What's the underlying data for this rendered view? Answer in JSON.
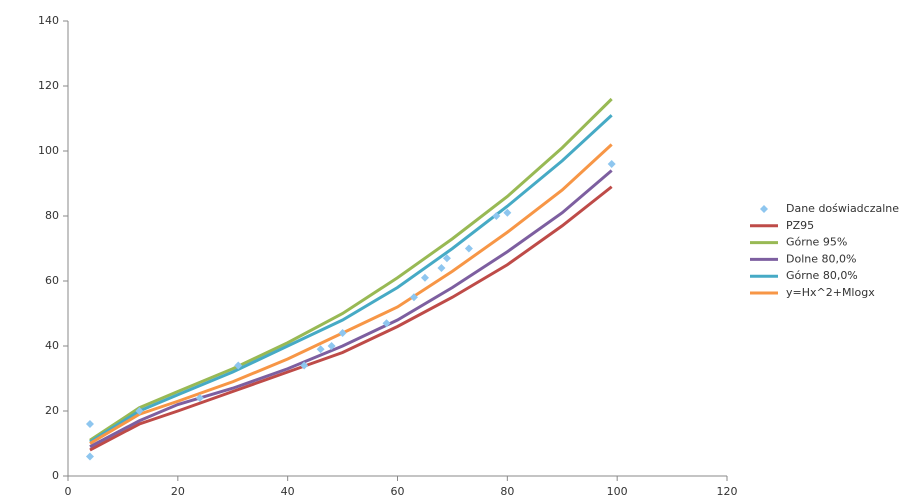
{
  "chart_data": {
    "type": "scatter",
    "xlim": [
      0,
      120
    ],
    "xticks": [
      0,
      20,
      40,
      60,
      80,
      100,
      120
    ],
    "ylim": [
      0,
      140
    ],
    "yticks": [
      0,
      20,
      40,
      60,
      80,
      100,
      120,
      140
    ],
    "grid": false,
    "legend": "right",
    "series": [
      {
        "name": "Dane doświadczalne",
        "color": "#8ec6ef",
        "mode": "markers",
        "x": [
          4,
          4,
          13,
          24,
          31,
          43,
          46,
          48,
          50,
          58,
          63,
          65,
          68,
          69,
          73,
          78,
          80,
          99
        ],
        "values": [
          16,
          6,
          20,
          24,
          34,
          34,
          39,
          40,
          44,
          47,
          55,
          61,
          64,
          67,
          70,
          80,
          81,
          96
        ]
      },
      {
        "name": "PZ95",
        "color": "#be4b48",
        "mode": "line",
        "x": [
          4,
          13,
          20,
          30,
          40,
          50,
          60,
          70,
          80,
          90,
          99
        ],
        "values": [
          8,
          16,
          20,
          26,
          32,
          38,
          46,
          55,
          65,
          77,
          89
        ]
      },
      {
        "name": "Górne 95%",
        "color": "#98b954",
        "mode": "line",
        "x": [
          4,
          13,
          20,
          30,
          40,
          50,
          60,
          70,
          80,
          90,
          99
        ],
        "values": [
          11,
          21,
          26,
          33,
          41,
          50,
          61,
          73,
          86,
          101,
          116
        ]
      },
      {
        "name": "Dolne 80,0%",
        "color": "#7d5fa0",
        "mode": "line",
        "x": [
          4,
          13,
          20,
          30,
          40,
          50,
          60,
          70,
          80,
          90,
          99
        ],
        "values": [
          9,
          17,
          22,
          27,
          33,
          40,
          48,
          58,
          69,
          81,
          94
        ]
      },
      {
        "name": "Górne 80,0%",
        "color": "#46aac5",
        "mode": "line",
        "x": [
          4,
          13,
          20,
          30,
          40,
          50,
          60,
          70,
          80,
          90,
          99
        ],
        "values": [
          10.5,
          20,
          25,
          32,
          40,
          48,
          58,
          70,
          83,
          97,
          111
        ]
      },
      {
        "name": "y=Hx^2+Mlogx",
        "color": "#f79646",
        "mode": "line",
        "x": [
          4,
          13,
          20,
          30,
          40,
          50,
          60,
          70,
          80,
          90,
          99
        ],
        "values": [
          10,
          19,
          23,
          29,
          36,
          44,
          52,
          63,
          75,
          88,
          102
        ]
      }
    ]
  }
}
